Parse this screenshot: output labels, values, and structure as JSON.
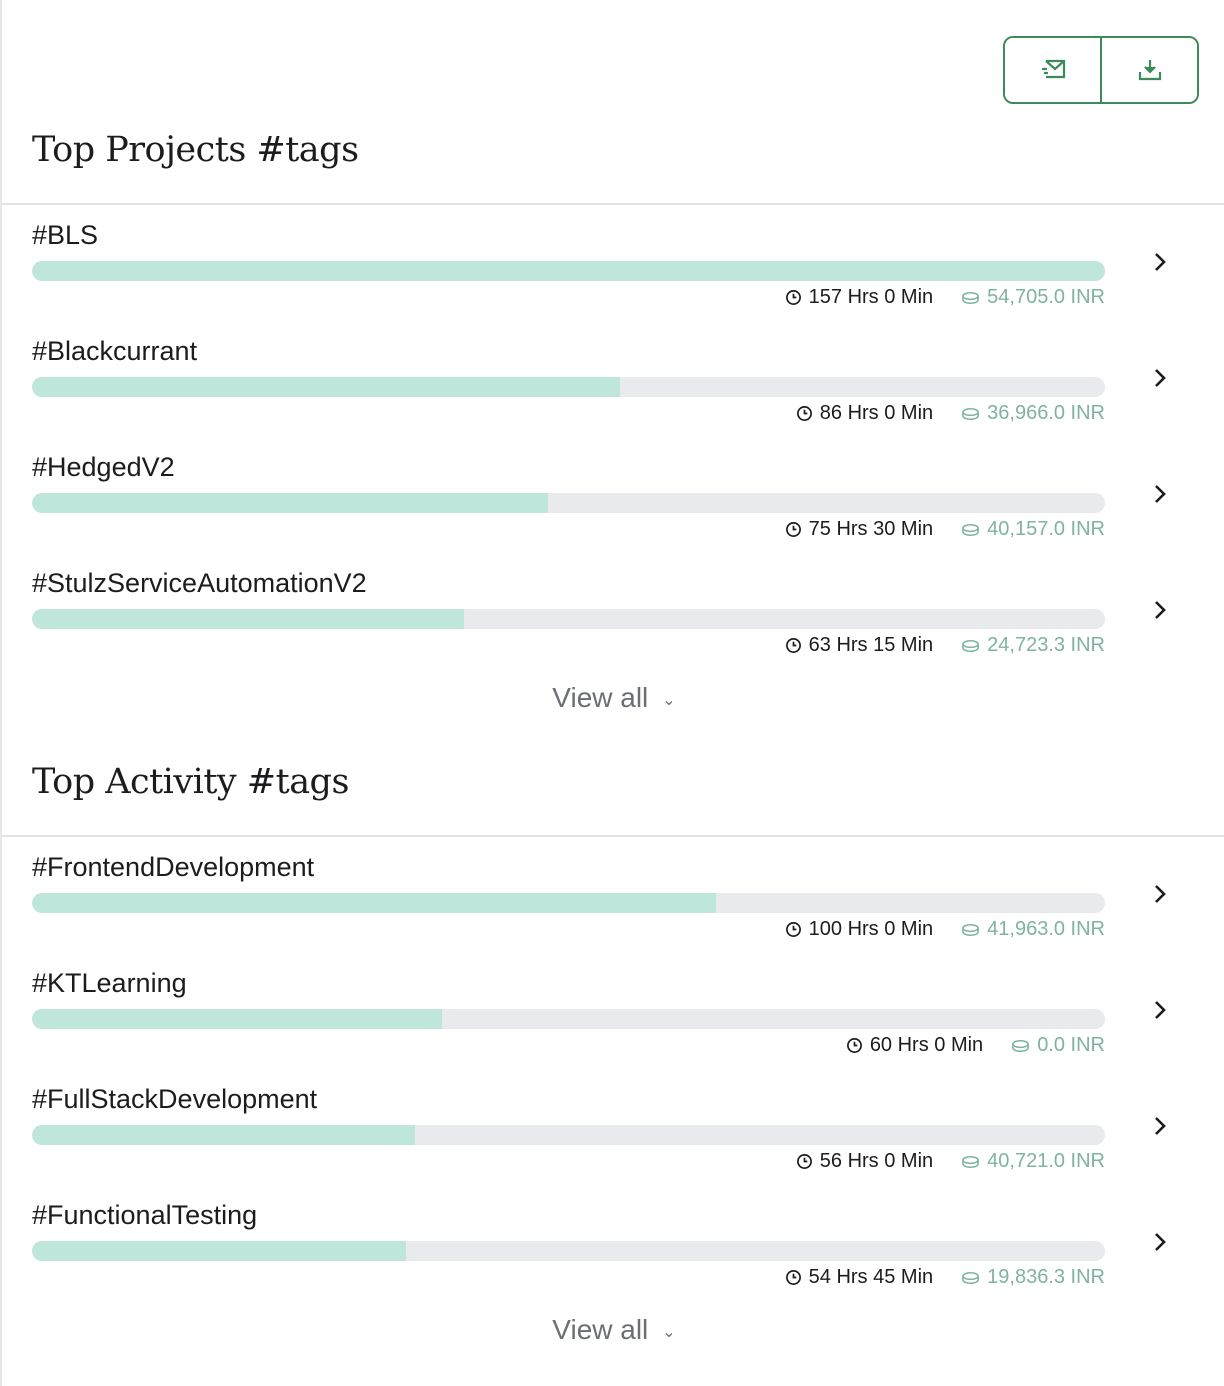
{
  "toolbar": {
    "email_icon": "email-send-icon",
    "download_icon": "download-icon"
  },
  "colors": {
    "accent": "#3d8a5a",
    "bar_fill": "#bfe6da",
    "bar_track": "#e9eaee",
    "amount": "#7fb3a0"
  },
  "projects": {
    "title": "Top Projects #tags",
    "view_all": "View all",
    "items": [
      {
        "name": "#BLS",
        "hours": "157 Hrs 0 Min",
        "amount": "54,705.0 INR",
        "progress": 1.0
      },
      {
        "name": "#Blackcurrant",
        "hours": "86 Hrs 0 Min",
        "amount": "36,966.0 INR",
        "progress": 0.548
      },
      {
        "name": "#HedgedV2",
        "hours": "75 Hrs 30 Min",
        "amount": "40,157.0 INR",
        "progress": 0.481
      },
      {
        "name": "#StulzServiceAutomationV2",
        "hours": "63 Hrs 15 Min",
        "amount": "24,723.3 INR",
        "progress": 0.403
      }
    ]
  },
  "activities": {
    "title": "Top Activity #tags",
    "view_all": "View all",
    "items": [
      {
        "name": "#FrontendDevelopment",
        "hours": "100 Hrs 0 Min",
        "amount": "41,963.0 INR",
        "progress": 0.637
      },
      {
        "name": "#KTLearning",
        "hours": "60 Hrs 0 Min",
        "amount": "0.0 INR",
        "progress": 0.382
      },
      {
        "name": "#FullStackDevelopment",
        "hours": "56 Hrs 0 Min",
        "amount": "40,721.0 INR",
        "progress": 0.357
      },
      {
        "name": "#FunctionalTesting",
        "hours": "54 Hrs 45 Min",
        "amount": "19,836.3 INR",
        "progress": 0.349
      }
    ]
  }
}
